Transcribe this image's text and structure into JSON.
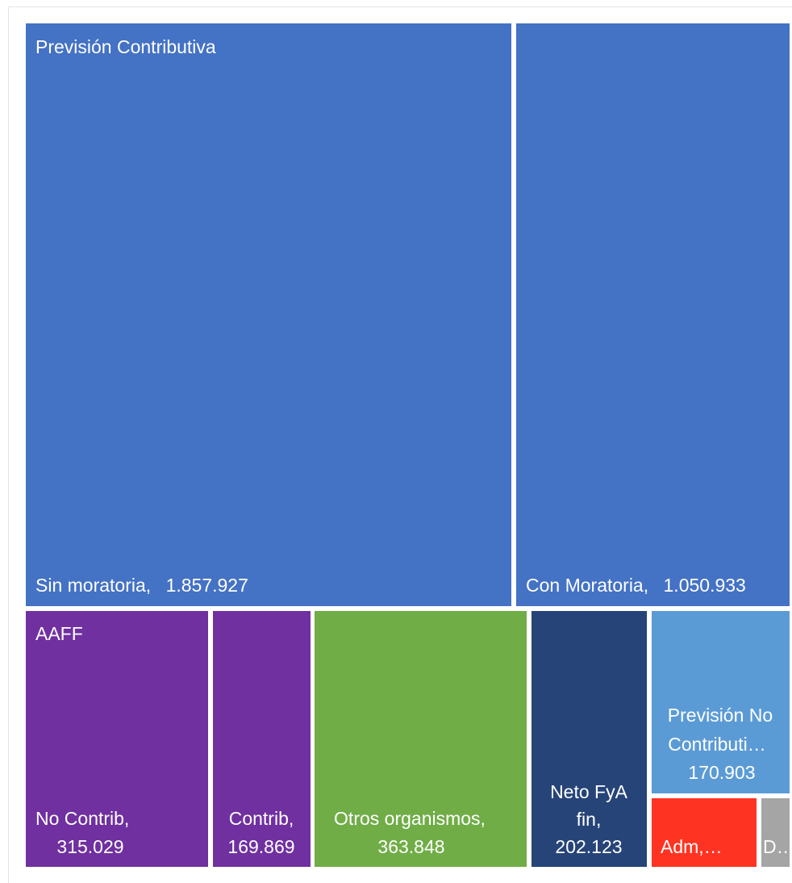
{
  "chart_data": {
    "type": "treemap",
    "colors": {
      "prevision_contributiva": "#4472C4",
      "aaff": "#7030A0",
      "otros_organismos": "#70AD47",
      "neto_fya": "#264478",
      "prevision_no_contributiva": "#5B9BD5",
      "adm": "#FF3322",
      "d": "#A5A5A5"
    },
    "group_labels": {
      "prevision_contributiva": "Previsión Contributiva",
      "aaff": "AAFF"
    },
    "items": [
      {
        "id": "sin_moratoria",
        "group": "prevision_contributiva",
        "label": "Sin moratoria,",
        "value": 1857927,
        "value_text": "1.857.927"
      },
      {
        "id": "con_moratoria",
        "group": "prevision_contributiva",
        "label": "Con Moratoria,",
        "value": 1050933,
        "value_text": "1.050.933"
      },
      {
        "id": "no_contrib",
        "group": "aaff",
        "label": "No Contrib,",
        "value": 315029,
        "value_text": "315.029"
      },
      {
        "id": "contrib",
        "group": "aaff",
        "label": "Contrib,",
        "value": 169869,
        "value_text": "169.869"
      },
      {
        "id": "otros_organismos",
        "group": "otros_organismos",
        "label": "Otros organismos,",
        "value": 363848,
        "value_text": "363.848"
      },
      {
        "id": "neto_fya",
        "group": "neto_fya",
        "label_lines": [
          "Neto FyA",
          "fin,"
        ],
        "value": 202123,
        "value_text": "202.123"
      },
      {
        "id": "prevision_no_contrib",
        "group": "prevision_no_contributiva",
        "label_lines": [
          "Previsión No",
          "Contributi…"
        ],
        "value": 170903,
        "value_text": "170.903"
      },
      {
        "id": "adm",
        "group": "adm",
        "label": "Adm,…"
      },
      {
        "id": "d",
        "group": "d",
        "label": "D…"
      }
    ]
  }
}
